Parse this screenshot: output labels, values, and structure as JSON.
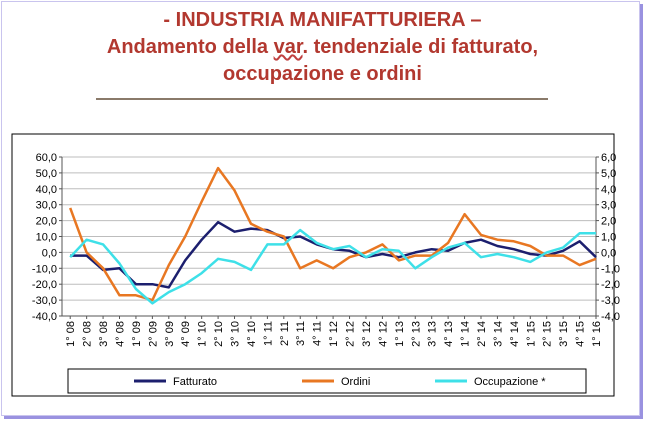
{
  "header": {
    "title_line1": "-  INDUSTRIA MANIFATTURIERA –",
    "title_line2_pre": "Andamento della ",
    "title_line2_var": "var",
    "title_line2_post": ". tendenziale di fatturato,",
    "title_line3": "occupazione e ordini"
  },
  "colors": {
    "title": "#b2382f",
    "fatturato": "#1c1f6e",
    "ordini": "#e87722",
    "occupazione": "#3ee0e8"
  },
  "chart_data": {
    "type": "line",
    "categories": [
      "1° 08",
      "2° 08",
      "3° 08",
      "4° 08",
      "1° 09",
      "2° 09",
      "3° 09",
      "4° 09",
      "1° 10",
      "2° 10",
      "3° 10",
      "4° 10",
      "1° 11",
      "2° 11",
      "3° 11",
      "4° 11",
      "1° 12",
      "2° 12",
      "3° 12",
      "4° 12",
      "1° 13",
      "2° 13",
      "3° 13",
      "4° 13",
      "1° 14",
      "2° 14",
      "3° 14",
      "4° 14",
      "1° 15",
      "2° 15",
      "3° 15",
      "4° 15",
      "1° 16"
    ],
    "ylim_left": [
      -40,
      60
    ],
    "yticks_left": [
      "60,0",
      "50,0",
      "40,0",
      "30,0",
      "20,0",
      "10,0",
      "0,0",
      "-10,0",
      "-20,0",
      "-30,0",
      "-40,0"
    ],
    "ylim_right": [
      -4,
      6
    ],
    "yticks_right": [
      "6,0",
      "5,0",
      "4,0",
      "3,0",
      "2,0",
      "1,0",
      "0,0",
      "-1,0",
      "-2,0",
      "-3,0",
      "-4,0"
    ],
    "grid": "horizontal",
    "legend_position": "bottom",
    "series": [
      {
        "name": "Fatturato",
        "axis": "left",
        "color": "#1c1f6e",
        "values": [
          -2,
          -2,
          -11,
          -10,
          -20,
          -20,
          -22,
          -5,
          8,
          19,
          13,
          15,
          14,
          9,
          10,
          5,
          2,
          1,
          -3,
          -1,
          -3,
          0,
          2,
          1,
          6,
          8,
          4,
          2,
          -1,
          -2,
          1,
          7,
          -3
        ]
      },
      {
        "name": "Ordini",
        "axis": "left",
        "color": "#e87722",
        "values": [
          28,
          0,
          -10,
          -27,
          -27,
          -30,
          -8,
          10,
          32,
          53,
          39,
          18,
          13,
          10,
          -10,
          -5,
          -10,
          -3,
          0,
          5,
          -5,
          -2,
          -2,
          6,
          24,
          11,
          8,
          7,
          4,
          -2,
          -2,
          -8,
          -4
        ]
      },
      {
        "name": "Occupazione *",
        "axis": "right",
        "color": "#3ee0e8",
        "values": [
          -0.3,
          0.8,
          0.5,
          -0.7,
          -2.3,
          -3.2,
          -2.5,
          -2.0,
          -1.3,
          -0.4,
          -0.6,
          -1.1,
          0.5,
          0.5,
          1.4,
          0.6,
          0.2,
          0.4,
          -0.3,
          0.2,
          0.1,
          -1.0,
          -0.3,
          0.3,
          0.6,
          -0.3,
          -0.1,
          -0.3,
          -0.6,
          0.0,
          0.3,
          1.2,
          1.2
        ]
      }
    ]
  }
}
